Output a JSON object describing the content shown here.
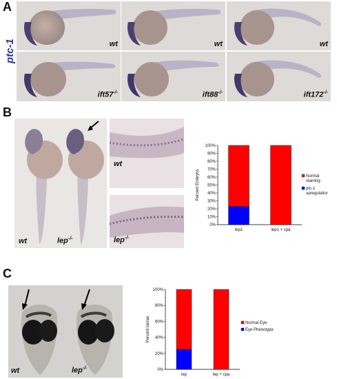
{
  "panel_a": {
    "letter": "A",
    "gene": "ptc-1",
    "row1": [
      {
        "genotype": "wt"
      },
      {
        "genotype": "wt"
      },
      {
        "genotype": "wt"
      }
    ],
    "row2": [
      {
        "genotype": "ift57",
        "sup": "-/-"
      },
      {
        "genotype": "ift88",
        "sup": "-/-"
      },
      {
        "genotype": "ift172",
        "sup": "-/-"
      }
    ]
  },
  "panel_b": {
    "letter": "B",
    "photo_left": {
      "cap1": "wt",
      "cap2": "lep",
      "cap2_sup": "-/-"
    },
    "photo_top": {
      "cap": "wt"
    },
    "photo_bottom": {
      "cap": "lep",
      "cap_sup": "-/-"
    }
  },
  "panel_c": {
    "letter": "C",
    "photo": {
      "cap1": "wt",
      "cap2": "lep",
      "cap2_sup": "-/-"
    }
  },
  "colors": {
    "normal": "#ff0000",
    "phenotype": "#0000ff",
    "gene_label": "#2b2f9c"
  },
  "chart_data": [
    {
      "type": "bar",
      "stacked": true,
      "categories": [
        "lep1",
        "lep1 + cpa"
      ],
      "series": [
        {
          "name": "ptc-1 upregulation",
          "color": "#0000ff",
          "values": [
            23,
            0
          ]
        },
        {
          "name": "Normal staining",
          "color": "#ff0000",
          "values": [
            77,
            100
          ]
        }
      ],
      "ylabel": "Percent Embryos",
      "ylim": [
        0,
        100
      ],
      "yticks": [
        "0%",
        "10%",
        "20%",
        "30%",
        "40%",
        "50%",
        "60%",
        "70%",
        "80%",
        "90%",
        "100%"
      ],
      "legend": [
        "Normal staining",
        "ptc-1 upregulation"
      ],
      "legend_position": "right"
    },
    {
      "type": "bar",
      "stacked": true,
      "categories": [
        "lep",
        "lep + cpa"
      ],
      "series": [
        {
          "name": "Eye Phenotype",
          "color": "#0000ff",
          "values": [
            25,
            0
          ]
        },
        {
          "name": "Normal Eye",
          "color": "#ff0000",
          "values": [
            75,
            100
          ]
        }
      ],
      "ylabel": "Percent larvae",
      "ylim": [
        0,
        100
      ],
      "yticks": [
        "0%",
        "20%",
        "40%",
        "60%",
        "80%",
        "100%"
      ],
      "legend": [
        "Normal Eye",
        "Eye Phenotype"
      ],
      "legend_position": "right"
    }
  ]
}
